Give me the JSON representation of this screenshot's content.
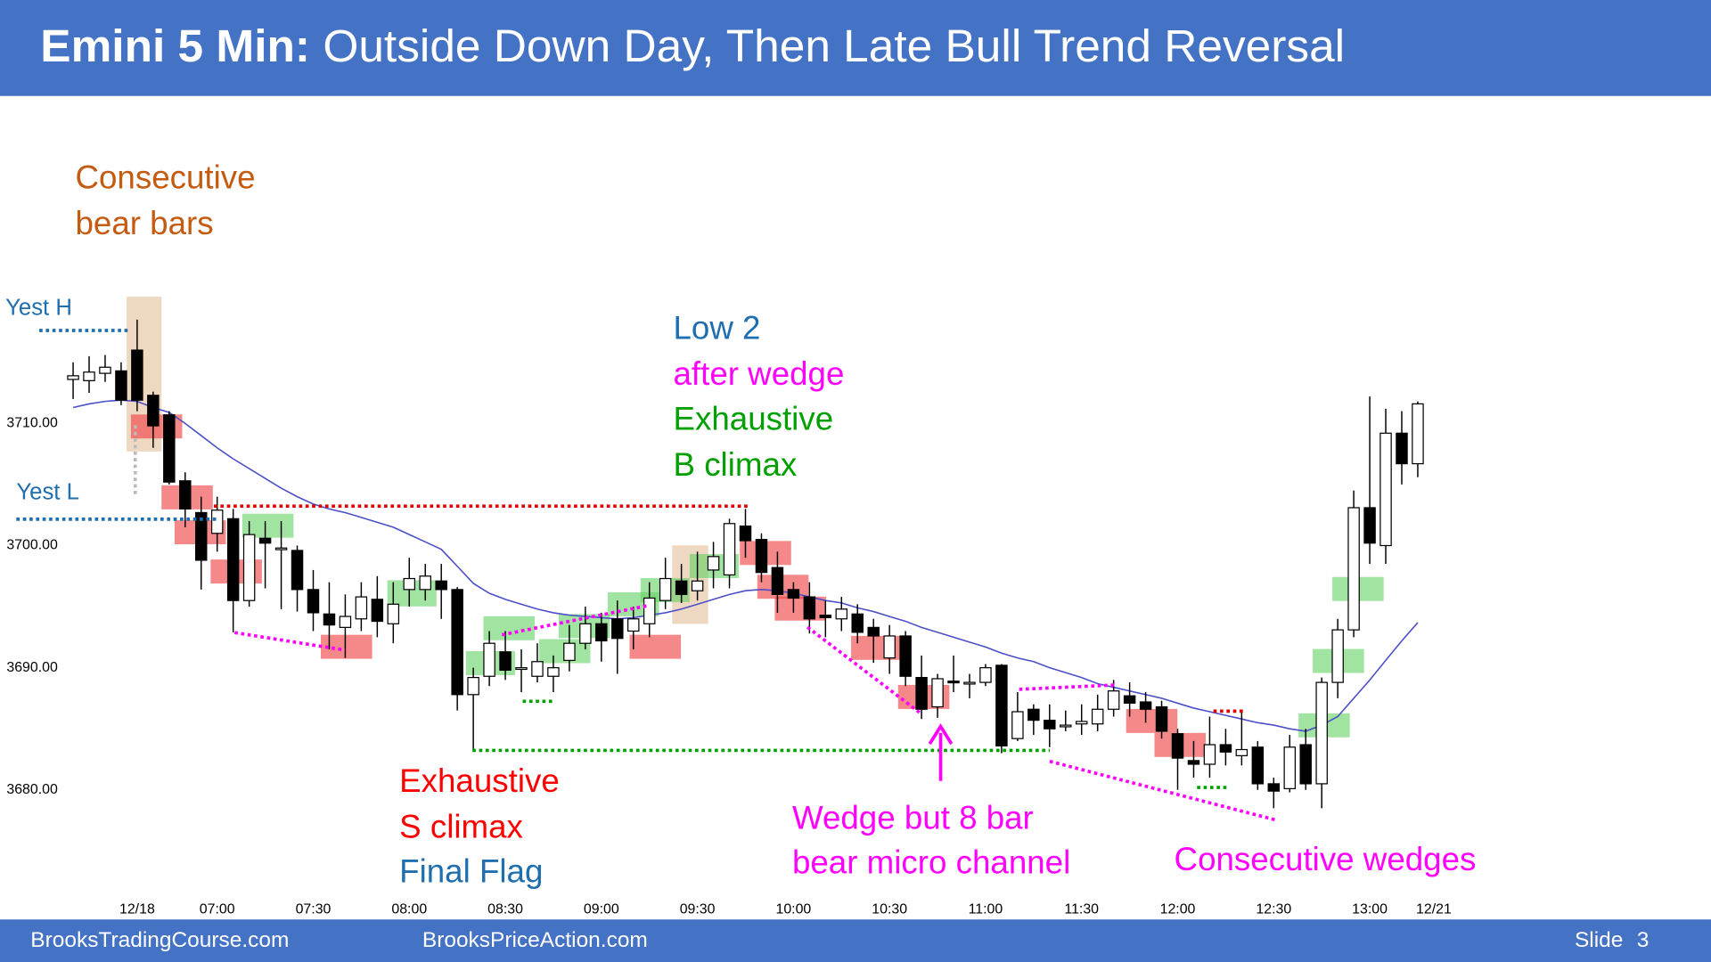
{
  "slide": {
    "title_prefix": "Emini 5 Min:",
    "title": "Outside Down Day, Then Late Bull Trend Reversal",
    "footer_left": "BrooksTradingCourse.com",
    "footer_middle": "BrooksPriceAction.com",
    "slide_label": "Slide",
    "slide_number": "3"
  },
  "chart_data": {
    "type": "candlestick",
    "annotations": [
      "Consecutive",
      "bear bars",
      "Yest H",
      "Yest L",
      "Low 2",
      "after wedge",
      "Exhaustive",
      "B climax",
      "Exhaustive",
      "S climax",
      "Final Flag",
      "Wedge but 8 bar",
      "bear micro channel",
      "Consecutive wedges"
    ],
    "categories": [
      null,
      null,
      null,
      null,
      "12/18",
      null,
      null,
      null,
      null,
      "07:00",
      null,
      null,
      null,
      null,
      null,
      "07:30",
      null,
      null,
      null,
      null,
      null,
      "08:00",
      null,
      null,
      null,
      null,
      null,
      "08:30",
      null,
      null,
      null,
      null,
      null,
      "09:00",
      null,
      null,
      null,
      null,
      null,
      "09:30",
      null,
      null,
      null,
      null,
      null,
      "10:00",
      null,
      null,
      null,
      null,
      null,
      "10:30",
      null,
      null,
      null,
      null,
      null,
      "11:00",
      null,
      null,
      null,
      null,
      null,
      "11:30",
      null,
      null,
      null,
      null,
      null,
      "12:00",
      null,
      null,
      null,
      null,
      null,
      "12:30",
      null,
      null,
      null,
      null,
      null,
      "13:00",
      null,
      null,
      null,
      "12/21"
    ],
    "open": [
      3713.6,
      3713.5,
      3714.1,
      3714.3,
      3716,
      3712.3,
      3710.7,
      3705.3,
      3702.7,
      3701,
      3702.2,
      3695.5,
      3700.6,
      3699.7,
      3699.6,
      3696.4,
      3694.4,
      3693.3,
      3694,
      3695.6,
      3693.6,
      3696.4,
      3696.4,
      3697.1,
      3696.4,
      3687.8,
      3689.3,
      3691.3,
      3690,
      3689.3,
      3689.3,
      3690.6,
      3692,
      3693.6,
      3694,
      3693,
      3693.6,
      3695.5,
      3697.1,
      3696.3,
      3698,
      3697.6,
      3701.6,
      3700.5,
      3698.2,
      3696.4,
      3695.8,
      3694.3,
      3694,
      3694.4,
      3693.3,
      3690.8,
      3692.6,
      3689.2,
      3686.8,
      3688.9,
      3688.7,
      3688.8,
      3690.2,
      3684.2,
      3686.6,
      3685.7,
      3685.2,
      3685.4,
      3685.4,
      3686.6,
      3687.7,
      3687.2,
      3686.8,
      3684.6,
      3682.4,
      3682.1,
      3683.7,
      3682.8,
      3683.5,
      3680.5,
      3680.1,
      3683.7,
      3680.5,
      3688.8,
      3693.1,
      3703.1,
      3700,
      3709.2,
      3706.7,
      null
    ],
    "high": [
      3715,
      3715.5,
      3715.6,
      3715,
      3718.5,
      3712.6,
      3711,
      3706,
      3704,
      3704,
      3703,
      3702,
      3702,
      3702,
      3700,
      3698,
      3697,
      3696,
      3697,
      3697.5,
      3697,
      3699,
      3698.5,
      3698.5,
      3696.6,
      3690,
      3693,
      3693,
      3691.5,
      3692,
      3691,
      3693.5,
      3695,
      3694.5,
      3695.5,
      3695,
      3697,
      3699,
      3698.5,
      3699.5,
      3700.3,
      3702.2,
      3703,
      3701,
      3699.5,
      3697,
      3697,
      3695.5,
      3695.8,
      3695.2,
      3694,
      3693.5,
      3693,
      3691,
      3689.5,
      3691,
      3689.5,
      3690.3,
      3690.3,
      3688,
      3687,
      3687,
      3686.5,
      3687,
      3687.8,
      3689,
      3688.8,
      3688,
      3687.3,
      3685,
      3684,
      3686,
      3685,
      3686.5,
      3684,
      3681,
      3684.5,
      3685,
      3689.2,
      3694,
      3704.5,
      3712.2,
      3711.2,
      3711,
      3711.8,
      null
    ],
    "low": [
      3712,
      3712.5,
      3713.4,
      3711.5,
      3711,
      3708,
      3705,
      3701.5,
      3696.4,
      3699.5,
      3692.9,
      3695,
      3696.5,
      3694.8,
      3694.6,
      3693,
      3691.5,
      3690.8,
      3693,
      3692.5,
      3692,
      3695,
      3695.5,
      3694,
      3686.5,
      3683.2,
      3688.5,
      3689,
      3688,
      3688.8,
      3688,
      3689.7,
      3691.5,
      3690.5,
      3689.5,
      3691.5,
      3692.5,
      3694.8,
      3695.3,
      3695.5,
      3696.5,
      3696.5,
      3699,
      3697,
      3694.5,
      3694.5,
      3692.8,
      3692.5,
      3693,
      3692,
      3690.4,
      3689.5,
      3688.5,
      3685.8,
      3685.9,
      3688,
      3687.5,
      3688.5,
      3683,
      3684,
      3684.5,
      3683.5,
      3684.8,
      3684.5,
      3684.8,
      3686,
      3686,
      3685.5,
      3684.2,
      3680,
      3681,
      3681,
      3682,
      3682,
      3680,
      3678.5,
      3679.8,
      3680,
      3678.5,
      3687.5,
      3692.5,
      3698.5,
      3698.5,
      3705,
      3705.6,
      null
    ],
    "close": [
      3713.9,
      3714.2,
      3714.6,
      3711.9,
      3711.9,
      3709.8,
      3705.2,
      3703,
      3698.8,
      3702.9,
      3695.5,
      3700.9,
      3700.2,
      3699.8,
      3696.4,
      3694.5,
      3693.5,
      3694.2,
      3695.8,
      3693.8,
      3695.2,
      3697.3,
      3697.5,
      3696.4,
      3687.8,
      3689.2,
      3692,
      3689.8,
      3690,
      3690.5,
      3690,
      3692,
      3693.6,
      3692.2,
      3692.4,
      3694,
      3695.7,
      3697.3,
      3696,
      3697.1,
      3699.1,
      3701.8,
      3700.4,
      3697.8,
      3696,
      3695.7,
      3694,
      3694.1,
      3694.8,
      3692.9,
      3692.6,
      3692.6,
      3689.3,
      3686.6,
      3689.1,
      3688.8,
      3688.8,
      3690,
      3683.6,
      3686.4,
      3685.7,
      3685,
      3685.3,
      3685.6,
      3686.6,
      3688.1,
      3687.1,
      3686.6,
      3684.8,
      3682.6,
      3682.1,
      3683.7,
      3683.1,
      3683.3,
      3680.5,
      3679.9,
      3683.5,
      3680.5,
      3688.8,
      3693.1,
      3703.1,
      3700.2,
      3709.2,
      3706.7,
      3711.6,
      null
    ],
    "ema": [
      3711.3,
      3711.6,
      3711.8,
      3711.9,
      3711.8,
      3711.3,
      3710.9,
      3710,
      3709,
      3708,
      3707.1,
      3706.3,
      3705.5,
      3704.7,
      3704,
      3703.4,
      3703,
      3702.7,
      3702.3,
      3701.9,
      3701.5,
      3700.9,
      3700.3,
      3699.7,
      3698.3,
      3696.9,
      3696.1,
      3695.6,
      3695.2,
      3694.8,
      3694.5,
      3694.3,
      3694.2,
      3694.1,
      3694,
      3694.1,
      3694.3,
      3694.5,
      3694.8,
      3695.2,
      3695.6,
      3696,
      3696.3,
      3696.4,
      3696.3,
      3696.1,
      3695.8,
      3695.5,
      3695.3,
      3694.9,
      3694.6,
      3694.2,
      3693.8,
      3693.3,
      3692.9,
      3692.5,
      3692.1,
      3691.7,
      3691.2,
      3690.8,
      3690.5,
      3690,
      3689.6,
      3689.2,
      3688.7,
      3688.4,
      3688.1,
      3687.8,
      3687.5,
      3687.1,
      3686.7,
      3686.4,
      3686.1,
      3685.8,
      3685.5,
      3685.3,
      3685,
      3684.8,
      3685.3,
      3686,
      3687.5,
      3689,
      3690.6,
      3692.2,
      3693.7,
      null
    ],
    "ema_color": "#4b50c8",
    "bull_color": "#ffffff",
    "bear_color": "#000000",
    "ylim": [
      3671,
      3721
    ],
    "yticks": [
      {
        "value": 3680,
        "label": "3680.00"
      },
      {
        "value": 3690,
        "label": "3690.00"
      },
      {
        "value": 3700,
        "label": "3700.00"
      },
      {
        "value": 3710,
        "label": "3710.00"
      }
    ],
    "grid": false
  }
}
